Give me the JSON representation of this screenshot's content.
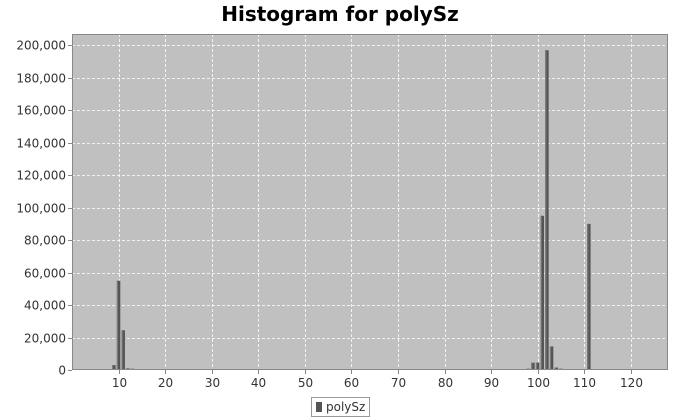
{
  "chart_data": {
    "type": "bar",
    "title": "Histogram for polySz",
    "xlabel": "",
    "ylabel": "",
    "xlim": [
      0,
      128
    ],
    "ylim": [
      0,
      207000
    ],
    "x_ticks": [
      10,
      20,
      30,
      40,
      50,
      60,
      70,
      80,
      90,
      100,
      110,
      120
    ],
    "y_ticks": [
      0,
      20000,
      40000,
      60000,
      80000,
      100000,
      120000,
      140000,
      160000,
      180000,
      200000
    ],
    "y_tick_labels": [
      "0",
      "20,000",
      "40,000",
      "60,000",
      "80,000",
      "100,000",
      "120,000",
      "140,000",
      "160,000",
      "180,000",
      "200,000"
    ],
    "grid": true,
    "legend_position": "bottom-center",
    "series": [
      {
        "name": "polySz",
        "color": "#555555",
        "x": [
          9,
          10,
          11,
          12,
          13,
          94,
          96,
          97,
          98,
          99,
          100,
          101,
          102,
          103,
          104,
          105,
          106,
          108,
          111
        ],
        "values": [
          3000,
          55000,
          24500,
          1000,
          800,
          200,
          500,
          600,
          800,
          4500,
          4500,
          95000,
          197000,
          14500,
          1500,
          800,
          300,
          200,
          90000
        ]
      }
    ]
  },
  "colors": {
    "plot_background": "#c0c0c0",
    "gridline": "#ffffff",
    "bar": "#555555"
  }
}
